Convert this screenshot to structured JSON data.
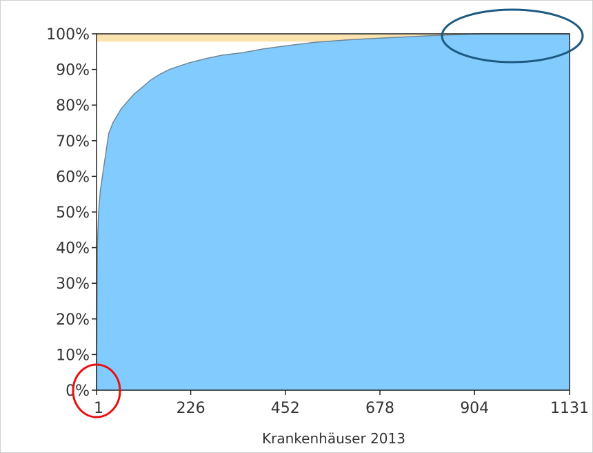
{
  "chart_data": {
    "type": "area",
    "xlabel": "Krankenhäuser 2013",
    "ylabel": "",
    "xlim": [
      1,
      1131
    ],
    "ylim": [
      0,
      100
    ],
    "x_ticks": [
      1,
      226,
      452,
      678,
      904,
      1131
    ],
    "x_tick_labels": [
      "1",
      "226",
      "452",
      "678",
      "904",
      "1131"
    ],
    "y_ticks": [
      0,
      10,
      20,
      30,
      40,
      50,
      60,
      70,
      80,
      90,
      100
    ],
    "y_tick_labels": [
      "0%",
      "10%",
      "20%",
      "30%",
      "40%",
      "50%",
      "60%",
      "70%",
      "80%",
      "90%",
      "100%"
    ],
    "grid": false,
    "series": [
      {
        "color": "#82cbff",
        "x": [
          1,
          3,
          6,
          10,
          15,
          20,
          25,
          30,
          40,
          50,
          60,
          75,
          90,
          110,
          130,
          150,
          175,
          200,
          226,
          260,
          300,
          350,
          400,
          452,
          520,
          600,
          678,
          750,
          800,
          850,
          904,
          1000,
          1131
        ],
        "y": [
          0,
          40,
          50,
          56,
          60,
          64,
          68,
          72,
          75,
          77,
          79,
          81,
          83,
          85,
          87,
          88.5,
          90,
          91,
          92,
          93,
          94,
          94.7,
          95.8,
          96.6,
          97.6,
          98.3,
          98.8,
          99.2,
          99.5,
          99.7,
          100,
          100,
          100
        ]
      }
    ],
    "reference_band": {
      "from": 97.8,
      "to": 100,
      "color": "#fbe3b0"
    },
    "annotations": [
      {
        "shape": "ellipse",
        "color": "#e81010",
        "at": "x-axis origin"
      },
      {
        "shape": "ellipse",
        "color": "#1d5a80",
        "at": "upper-right plateau"
      }
    ],
    "colors": {
      "fill": "#82cbff",
      "line": "#6e8696",
      "band": "#fbe3b0",
      "axis": "#222222"
    }
  }
}
